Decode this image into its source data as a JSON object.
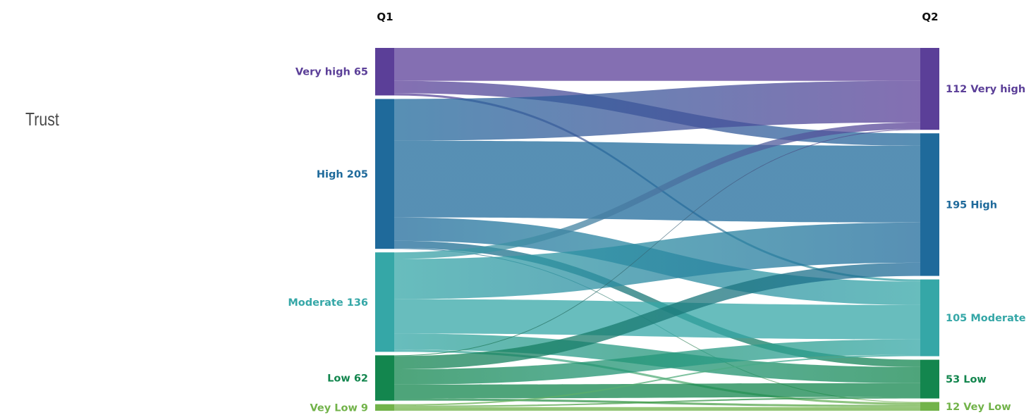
{
  "page": {
    "title": "Trust"
  },
  "chart_data": {
    "type": "sankey",
    "columns": [
      "Q1",
      "Q2"
    ],
    "colors": {
      "Very high": "#5b3f98",
      "High": "#1f6a9b",
      "Moderate": "#35a7a7",
      "Low": "#13864e",
      "Vey Low": "#72b34a"
    },
    "sources": [
      {
        "name": "Very high",
        "value": 65,
        "label": "Very high 65"
      },
      {
        "name": "High",
        "value": 205,
        "label": "High 205"
      },
      {
        "name": "Moderate",
        "value": 136,
        "label": "Moderate 136"
      },
      {
        "name": "Low",
        "value": 62,
        "label": "Low 62"
      },
      {
        "name": "Vey Low",
        "value": 9,
        "label": "Vey Low 9"
      }
    ],
    "targets": [
      {
        "name": "Very high",
        "value": 112,
        "label": "112 Very high"
      },
      {
        "name": "High",
        "value": 195,
        "label": "195 High"
      },
      {
        "name": "Moderate",
        "value": 105,
        "label": "105 Moderate"
      },
      {
        "name": "Low",
        "value": 53,
        "label": "53 Low"
      },
      {
        "name": "Vey Low",
        "value": 12,
        "label": "12 Vey Low"
      }
    ],
    "flows": [
      {
        "from": "Very high",
        "to": "Very high",
        "value": 45
      },
      {
        "from": "Very high",
        "to": "High",
        "value": 17
      },
      {
        "from": "Very high",
        "to": "Moderate",
        "value": 3
      },
      {
        "from": "High",
        "to": "Very high",
        "value": 57
      },
      {
        "from": "High",
        "to": "High",
        "value": 105
      },
      {
        "from": "High",
        "to": "Moderate",
        "value": 32
      },
      {
        "from": "High",
        "to": "Low",
        "value": 10
      },
      {
        "from": "High",
        "to": "Vey Low",
        "value": 1
      },
      {
        "from": "Moderate",
        "to": "Very high",
        "value": 9
      },
      {
        "from": "Moderate",
        "to": "High",
        "value": 55
      },
      {
        "from": "Moderate",
        "to": "Moderate",
        "value": 47
      },
      {
        "from": "Moderate",
        "to": "Low",
        "value": 22
      },
      {
        "from": "Moderate",
        "to": "Vey Low",
        "value": 3
      },
      {
        "from": "Low",
        "to": "Very high",
        "value": 1
      },
      {
        "from": "Low",
        "to": "High",
        "value": 18
      },
      {
        "from": "Low",
        "to": "Moderate",
        "value": 21
      },
      {
        "from": "Low",
        "to": "Low",
        "value": 19
      },
      {
        "from": "Low",
        "to": "Vey Low",
        "value": 3
      },
      {
        "from": "Vey Low",
        "to": "Moderate",
        "value": 2
      },
      {
        "from": "Vey Low",
        "to": "Low",
        "value": 2
      },
      {
        "from": "Vey Low",
        "to": "Vey Low",
        "value": 5
      }
    ]
  }
}
